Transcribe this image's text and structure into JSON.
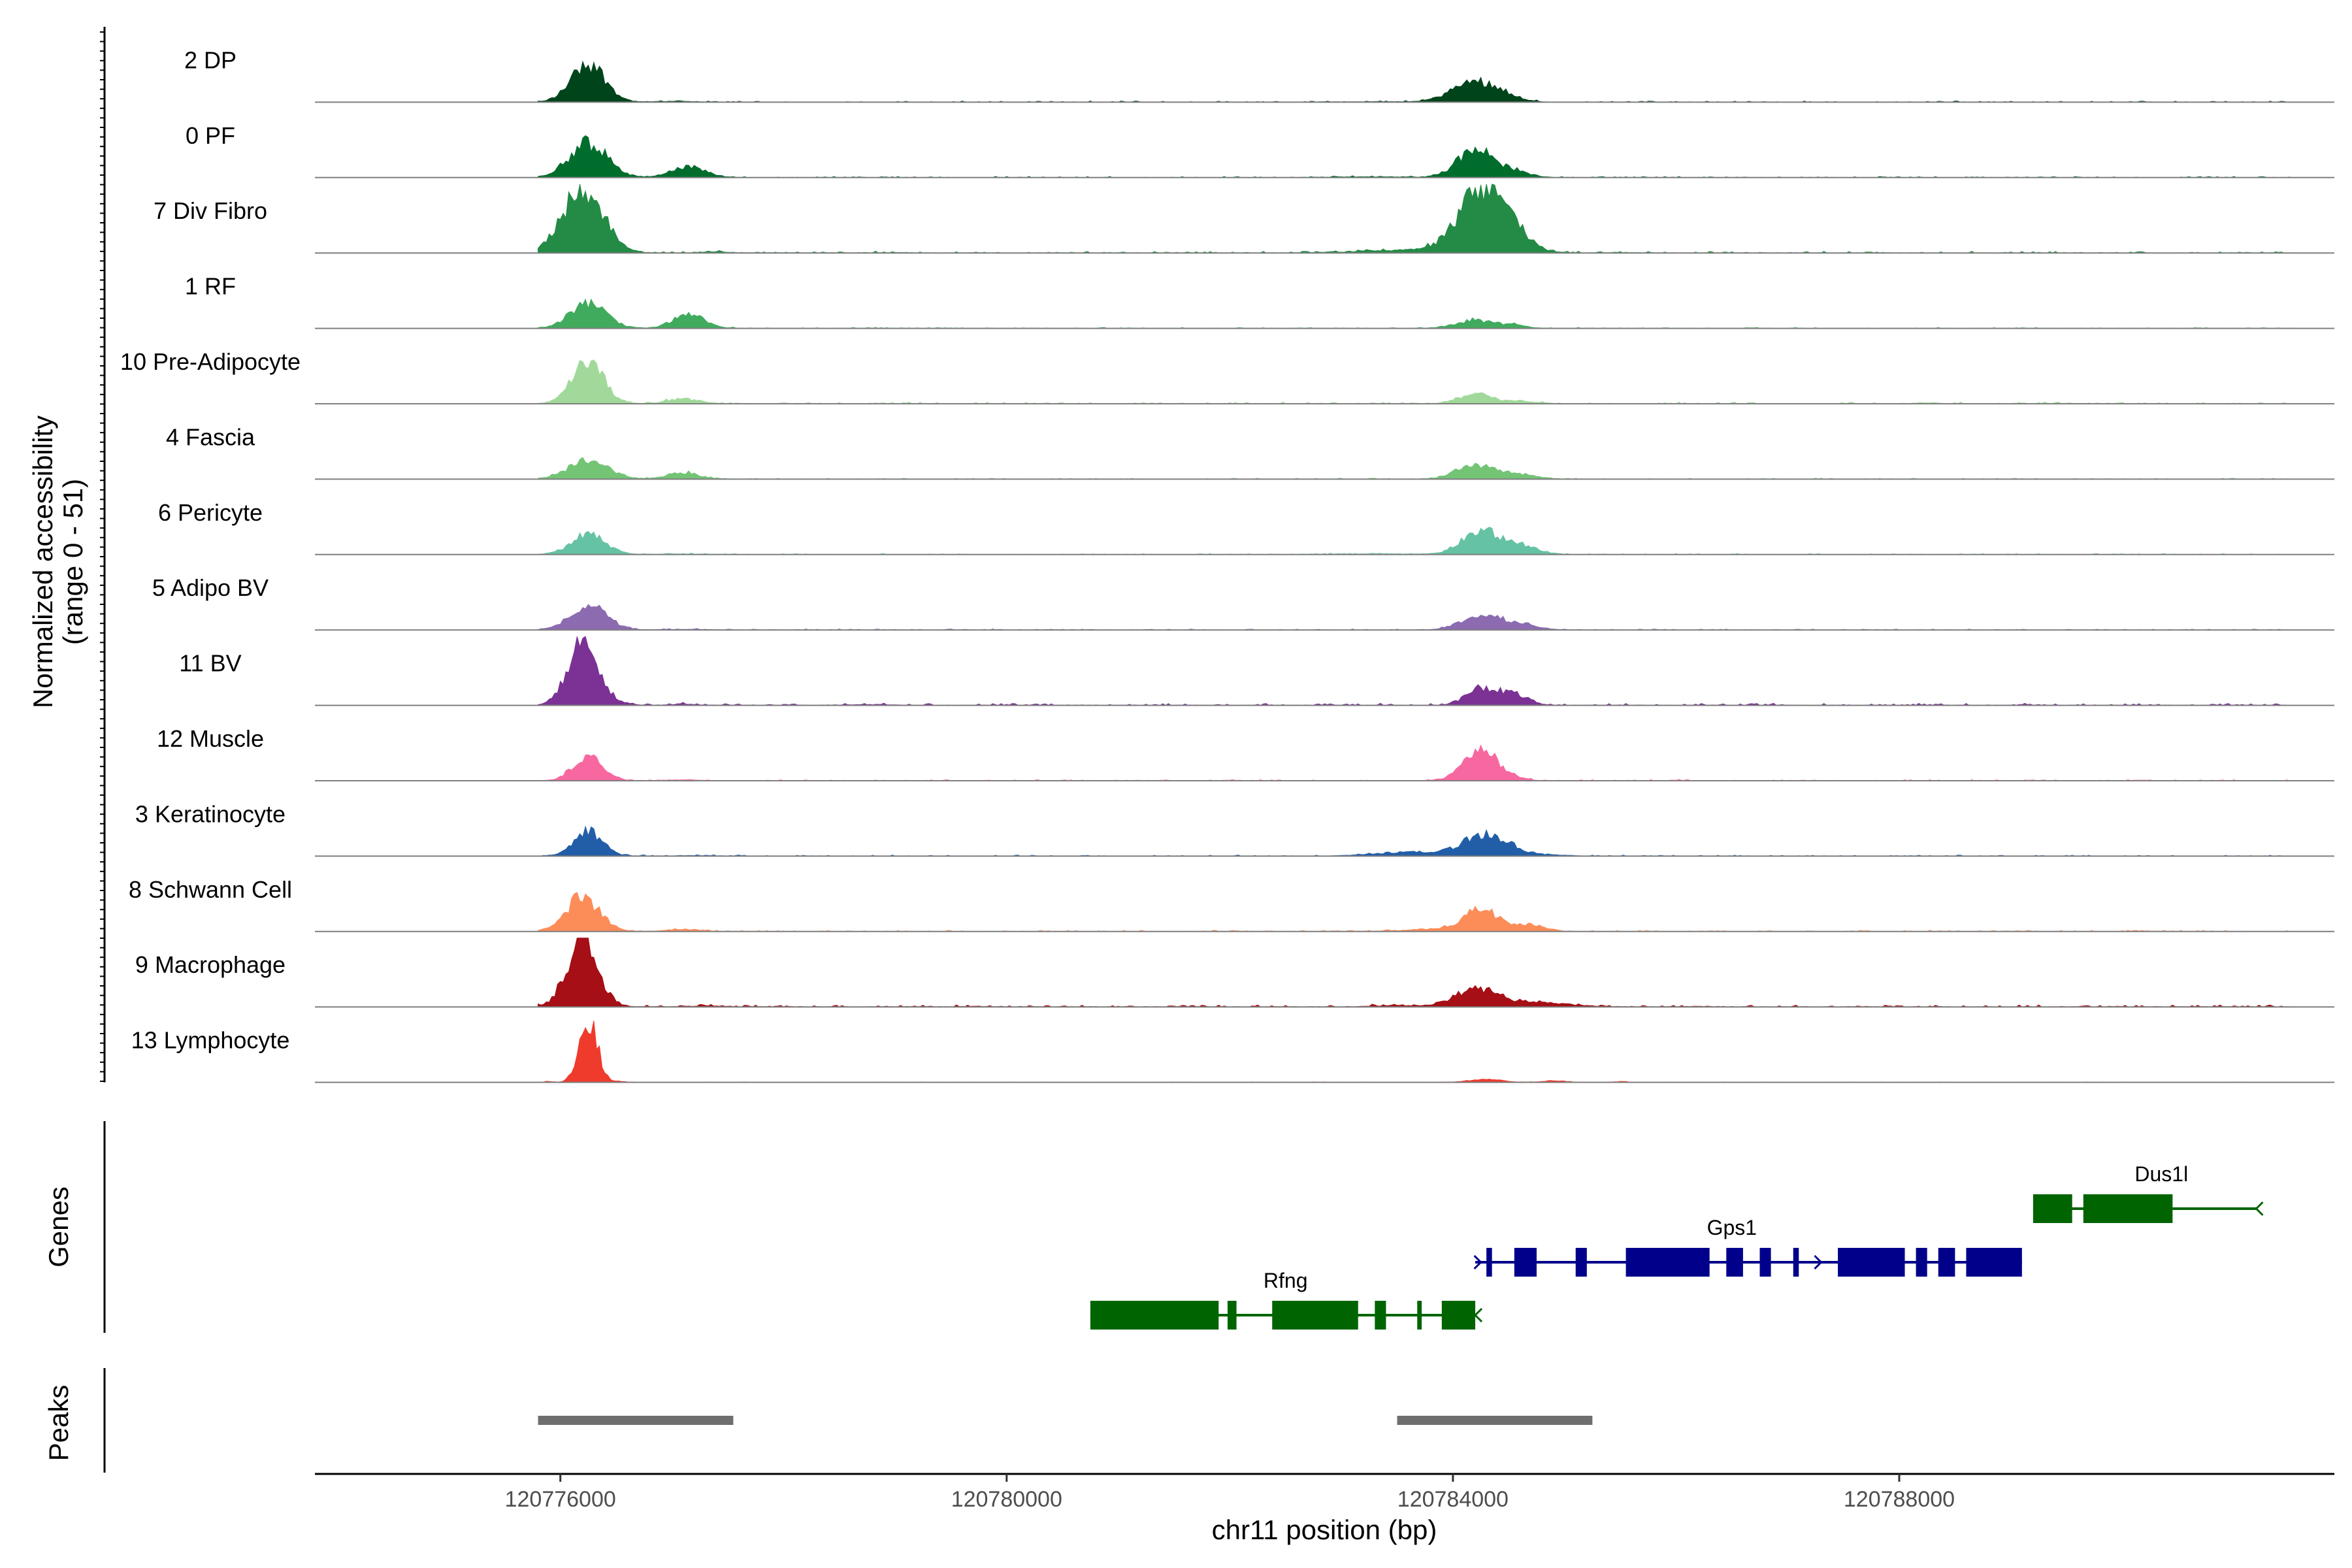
{
  "chart_data": {
    "type": "area",
    "chromosome": "chr11",
    "xlim": [
      120773800,
      120791900
    ],
    "ylabel": "Normalized accessibility\n(range 0 - 51)",
    "y_range": [
      0,
      51
    ],
    "xlabel": "chr11 position (bp)",
    "x_ticks": [
      120776000,
      120780000,
      120784000,
      120788000
    ],
    "x_tick_labels": [
      "120776000",
      "120780000",
      "120784000",
      "120788000"
    ],
    "panel_labels": {
      "genes": "Genes",
      "peaks": "Peaks"
    },
    "tracks": [
      {
        "name": "2 DP",
        "color": "#00441b",
        "peaks": [
          [
            120776250,
            30,
            150,
            0.95
          ],
          [
            120777000,
            5,
            200,
            0.1
          ],
          [
            120784200,
            22,
            200,
            0.7
          ],
          [
            120784500,
            8,
            120,
            0.3
          ],
          [
            120783300,
            6,
            400,
            0.05
          ]
        ],
        "noise": 0.06
      },
      {
        "name": "0 PF",
        "color": "#006d2c",
        "peaks": [
          [
            120776250,
            28,
            170,
            0.9
          ],
          [
            120777150,
            16,
            150,
            0.5
          ],
          [
            120784200,
            25,
            160,
            0.8
          ],
          [
            120784550,
            12,
            130,
            0.4
          ],
          [
            120783300,
            6,
            400,
            0.08
          ]
        ],
        "noise": 0.06
      },
      {
        "name": "7 Div Fibro",
        "color": "#238b45",
        "peaks": [
          [
            120776200,
            51,
            180,
            0.95
          ],
          [
            120777400,
            6,
            100,
            0.15
          ],
          [
            120784300,
            51,
            220,
            1.0
          ],
          [
            120783600,
            10,
            400,
            0.2
          ],
          [
            120779000,
            3,
            100,
            0.08
          ],
          [
            120785500,
            3,
            150,
            0.06
          ]
        ],
        "noise": 0.08
      },
      {
        "name": "1 RF",
        "color": "#41ab5d",
        "peaks": [
          [
            120776250,
            30,
            160,
            0.6
          ],
          [
            120777150,
            22,
            140,
            0.45
          ],
          [
            120784200,
            20,
            170,
            0.3
          ],
          [
            120784550,
            10,
            110,
            0.2
          ]
        ],
        "noise": 0.05
      },
      {
        "name": "10 Pre-Adipocyte",
        "color": "#a1d99b",
        "peaks": [
          [
            120776250,
            30,
            140,
            1.0
          ],
          [
            120777100,
            12,
            140,
            0.3
          ],
          [
            120784200,
            20,
            150,
            0.35
          ],
          [
            120784600,
            10,
            150,
            0.18
          ],
          [
            120788300,
            4,
            100,
            0.12
          ],
          [
            120789500,
            3,
            150,
            0.1
          ]
        ],
        "noise": 0.08
      },
      {
        "name": "4 Fascia",
        "color": "#74c476",
        "peaks": [
          [
            120776250,
            30,
            180,
            0.45
          ],
          [
            120777100,
            16,
            140,
            0.3
          ],
          [
            120784200,
            25,
            170,
            0.4
          ],
          [
            120784600,
            14,
            150,
            0.25
          ]
        ],
        "noise": 0.05
      },
      {
        "name": "6 Pericyte",
        "color": "#66c2a4",
        "peaks": [
          [
            120776250,
            30,
            150,
            0.5
          ],
          [
            120777100,
            5,
            200,
            0.08
          ],
          [
            120784250,
            30,
            170,
            0.55
          ],
          [
            120784600,
            16,
            160,
            0.4
          ],
          [
            120783300,
            6,
            400,
            0.08
          ]
        ],
        "noise": 0.05
      },
      {
        "name": "5 Adipo BV",
        "color": "#8c6bb1",
        "peaks": [
          [
            120776250,
            30,
            160,
            0.6
          ],
          [
            120777100,
            5,
            200,
            0.08
          ],
          [
            120784250,
            24,
            170,
            0.45
          ],
          [
            120784600,
            14,
            160,
            0.3
          ]
        ],
        "noise": 0.05
      },
      {
        "name": "11 BV",
        "color": "#7b3294",
        "peaks": [
          [
            120776200,
            51,
            130,
            1.0
          ],
          [
            120776500,
            10,
            100,
            0.2
          ],
          [
            120777100,
            6,
            100,
            0.15
          ],
          [
            120784250,
            28,
            130,
            0.45
          ],
          [
            120784550,
            16,
            120,
            0.5
          ],
          [
            120778800,
            4,
            150,
            0.12
          ]
        ],
        "noise": 0.1
      },
      {
        "name": "12 Muscle",
        "color": "#f768a1",
        "peaks": [
          [
            120776250,
            30,
            130,
            0.65
          ],
          [
            120777100,
            6,
            150,
            0.1
          ],
          [
            120784250,
            30,
            150,
            0.8
          ],
          [
            120784550,
            8,
            100,
            0.2
          ],
          [
            120782000,
            3,
            80,
            0.1
          ],
          [
            120786000,
            3,
            100,
            0.12
          ],
          [
            120790200,
            3,
            80,
            0.1
          ]
        ],
        "noise": 0.05
      },
      {
        "name": "3 Keratinocyte",
        "color": "#225ea8",
        "peaks": [
          [
            120776250,
            30,
            130,
            0.6
          ],
          [
            120777200,
            5,
            150,
            0.08
          ],
          [
            120784300,
            30,
            200,
            0.55
          ],
          [
            120783600,
            14,
            300,
            0.2
          ],
          [
            120784800,
            8,
            200,
            0.1
          ]
        ],
        "noise": 0.06
      },
      {
        "name": "8 Schwann Cell",
        "color": "#fc8d59",
        "peaks": [
          [
            120776200,
            30,
            150,
            0.85
          ],
          [
            120777100,
            8,
            150,
            0.2
          ],
          [
            120784250,
            26,
            160,
            0.6
          ],
          [
            120784700,
            14,
            130,
            0.35
          ],
          [
            120783800,
            8,
            300,
            0.15
          ],
          [
            120790200,
            3,
            100,
            0.1
          ]
        ],
        "noise": 0.06
      },
      {
        "name": "9 Macrophage",
        "color": "#a50f15",
        "peaks": [
          [
            120776200,
            51,
            140,
            0.9
          ],
          [
            120777300,
            6,
            150,
            0.1
          ],
          [
            120784200,
            30,
            180,
            0.45
          ],
          [
            120784700,
            14,
            300,
            0.25
          ],
          [
            120783500,
            8,
            200,
            0.12
          ],
          [
            120779700,
            3,
            100,
            0.1
          ],
          [
            120786200,
            3,
            100,
            0.1
          ]
        ],
        "noise": 0.1
      },
      {
        "name": "13 Lymphocyte",
        "color": "#ef3b2c",
        "peaks": [
          [
            120776250,
            51,
            80,
            0.95
          ],
          [
            120775900,
            4,
            40,
            0.15
          ],
          [
            120776550,
            4,
            40,
            0.15
          ],
          [
            120784300,
            8,
            150,
            0.25
          ],
          [
            120784900,
            6,
            100,
            0.18
          ],
          [
            120785500,
            4,
            60,
            0.15
          ]
        ],
        "noise": 0.02
      }
    ],
    "genes": [
      {
        "name": "Rfng",
        "strand": "-",
        "color": "#006400",
        "start": 120780750,
        "end": 120784200,
        "exons": [
          [
            120780750,
            120781900
          ],
          [
            120781980,
            120782060
          ],
          [
            120782380,
            120783150
          ],
          [
            120783300,
            120783400
          ],
          [
            120783680,
            120783720
          ],
          [
            120783900,
            120784200
          ]
        ]
      },
      {
        "name": "Gps1",
        "strand": "+",
        "color": "#00008b",
        "start": 120784200,
        "end": 120789100,
        "exons": [
          [
            120784300,
            120784350
          ],
          [
            120784550,
            120784750
          ],
          [
            120785100,
            120785200
          ],
          [
            120785550,
            120786300
          ],
          [
            120786450,
            120786600
          ],
          [
            120786750,
            120786850
          ],
          [
            120787050,
            120787100
          ],
          [
            120787450,
            120788050
          ],
          [
            120788150,
            120788250
          ],
          [
            120788350,
            120788500
          ],
          [
            120788600,
            120789100
          ]
        ]
      },
      {
        "name": "Dus1l",
        "strand": "-",
        "color": "#006400",
        "start": 120789200,
        "end": 120791200,
        "exons": [
          [
            120789200,
            120789550
          ],
          [
            120789650,
            120790450
          ]
        ]
      }
    ],
    "peaks": [
      [
        120775800,
        120777550
      ],
      [
        120783500,
        120785250
      ]
    ]
  }
}
